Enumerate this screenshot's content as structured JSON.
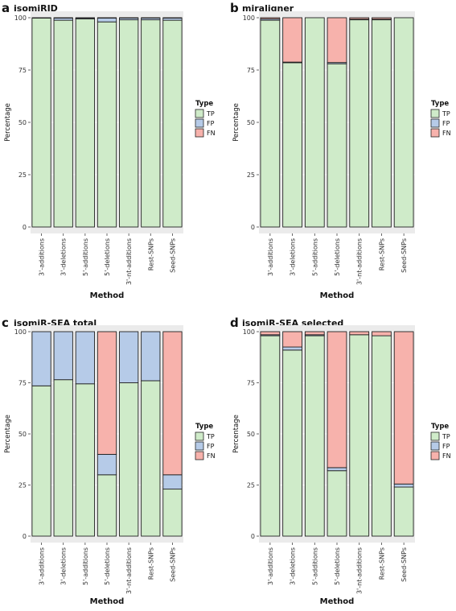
{
  "colors": {
    "TP": "#cfebc9",
    "FP": "#b6cbe8",
    "FN": "#f7b2ac",
    "panel_bg": "#ebebeb",
    "stroke": "#222222"
  },
  "chart_data": [
    {
      "type": "bar",
      "panel": "a",
      "title": "isomiRID",
      "xlabel": "Method",
      "ylabel": "Percentage",
      "ylim": [
        0,
        100
      ],
      "yticks": [
        0,
        25,
        50,
        75,
        100
      ],
      "legend_title": "Type",
      "legend": [
        "TP",
        "FP",
        "FN"
      ],
      "categories": [
        "3'-additions",
        "3'-deletions",
        "5'-additions",
        "5'-deletions",
        "3'-nt-additions",
        "Rest-SNPs",
        "Seed-SNPs"
      ],
      "series": [
        {
          "name": "TP",
          "values": [
            99.8,
            98.8,
            99.4,
            98.0,
            99.0,
            99.0,
            98.8
          ]
        },
        {
          "name": "FP",
          "values": [
            0.2,
            1.0,
            0.4,
            1.8,
            0.8,
            0.8,
            1.0
          ]
        },
        {
          "name": "FN",
          "values": [
            0.0,
            0.2,
            0.2,
            0.2,
            0.2,
            0.2,
            0.2
          ]
        }
      ]
    },
    {
      "type": "bar",
      "panel": "b",
      "title": "miraligner",
      "xlabel": "Method",
      "ylabel": "Percentage",
      "ylim": [
        0,
        100
      ],
      "yticks": [
        0,
        25,
        50,
        75,
        100
      ],
      "legend_title": "Type",
      "legend": [
        "TP",
        "FP",
        "FN"
      ],
      "categories": [
        "3'-additions",
        "3'-deletions",
        "5'-additions",
        "5'-deletions",
        "3'-nt-additions",
        "Rest-SNPs",
        "Seed-SNPs"
      ],
      "series": [
        {
          "name": "TP",
          "values": [
            98.8,
            78.5,
            100.0,
            78.0,
            99.0,
            99.0,
            100.0
          ]
        },
        {
          "name": "FP",
          "values": [
            0.6,
            0.3,
            0.0,
            0.6,
            0.3,
            0.3,
            0.0
          ]
        },
        {
          "name": "FN",
          "values": [
            0.6,
            21.2,
            0.0,
            21.4,
            0.7,
            0.7,
            0.0
          ]
        }
      ]
    },
    {
      "type": "bar",
      "panel": "c",
      "title": "isomiR-SEA total",
      "xlabel": "Method",
      "ylabel": "Percentage",
      "ylim": [
        0,
        100
      ],
      "yticks": [
        0,
        25,
        50,
        75,
        100
      ],
      "legend_title": "Type",
      "legend": [
        "TP",
        "FP",
        "FN"
      ],
      "categories": [
        "3'-additions",
        "3'-deletions",
        "5'-additions",
        "5'-deletions",
        "3'-nt-additions",
        "Rest-SNPs",
        "Seed-SNPs"
      ],
      "series": [
        {
          "name": "TP",
          "values": [
            73.5,
            76.5,
            74.5,
            30.0,
            75.0,
            76.0,
            23.0
          ]
        },
        {
          "name": "FP",
          "values": [
            26.5,
            23.5,
            25.5,
            10.0,
            25.0,
            24.0,
            7.0
          ]
        },
        {
          "name": "FN",
          "values": [
            0.0,
            0.0,
            0.0,
            60.0,
            0.0,
            0.0,
            70.0
          ]
        }
      ]
    },
    {
      "type": "bar",
      "panel": "d",
      "title": "isomiR-SEA selected",
      "xlabel": "Method",
      "ylabel": "Percentage",
      "ylim": [
        0,
        100
      ],
      "yticks": [
        0,
        25,
        50,
        75,
        100
      ],
      "legend_title": "Type",
      "legend": [
        "TP",
        "FP",
        "FN"
      ],
      "categories": [
        "3'-additions",
        "3'-deletions",
        "5'-additions",
        "5'-deletions",
        "3'-nt-additions",
        "Rest-SNPs",
        "Seed-SNPs"
      ],
      "series": [
        {
          "name": "TP",
          "values": [
            98.0,
            91.0,
            98.0,
            32.0,
            98.5,
            98.0,
            24.0
          ]
        },
        {
          "name": "FP",
          "values": [
            0.5,
            1.5,
            0.5,
            1.5,
            0.0,
            0.0,
            1.5
          ]
        },
        {
          "name": "FN",
          "values": [
            1.5,
            7.5,
            1.5,
            66.5,
            1.5,
            2.0,
            74.5
          ]
        }
      ]
    }
  ]
}
